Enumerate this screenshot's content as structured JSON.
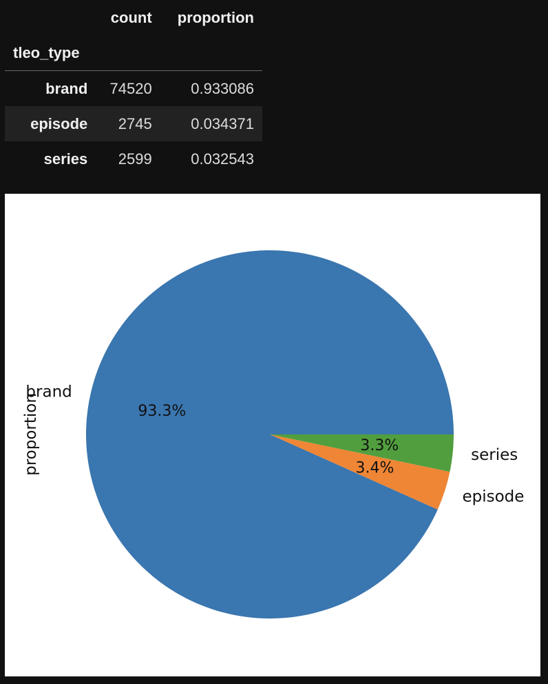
{
  "table": {
    "columns": [
      "count",
      "proportion"
    ],
    "index_name": "tleo_type",
    "rows": [
      {
        "label": "brand",
        "count": "74520",
        "proportion": "0.933086"
      },
      {
        "label": "episode",
        "count": "2745",
        "proportion": "0.034371"
      },
      {
        "label": "series",
        "count": "2599",
        "proportion": "0.032543"
      }
    ]
  },
  "chart_data": {
    "type": "pie",
    "ylabel": "proportion",
    "categories": [
      "brand",
      "episode",
      "series"
    ],
    "values": [
      0.933086,
      0.034371,
      0.032543
    ],
    "pct_labels": [
      "93.3%",
      "3.4%",
      "3.3%"
    ],
    "colors": [
      "#3a76af",
      "#ef8636",
      "#519e3e"
    ],
    "start": "counterclockwise from 0°"
  }
}
